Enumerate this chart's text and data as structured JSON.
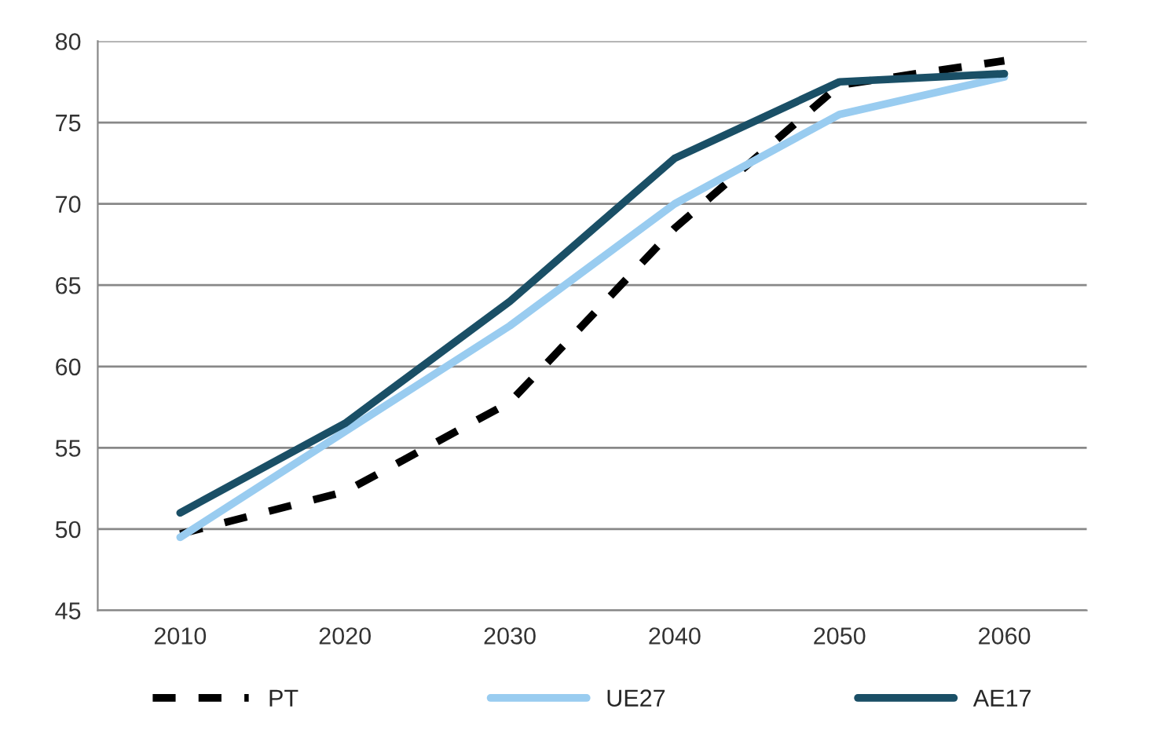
{
  "chart_data": {
    "type": "line",
    "categories": [
      "2010",
      "2020",
      "2030",
      "2040",
      "2050",
      "2060"
    ],
    "series": [
      {
        "name": "PT",
        "color": "#000000",
        "line_style": "dashed",
        "values": [
          49.7,
          52.3,
          57.8,
          68.5,
          77.3,
          78.8
        ]
      },
      {
        "name": "UE27",
        "color": "#99ccf0",
        "line_style": "solid",
        "values": [
          49.5,
          56.0,
          62.5,
          70.0,
          75.5,
          77.8
        ]
      },
      {
        "name": "AE17",
        "color": "#1a4f66",
        "line_style": "solid",
        "values": [
          51.0,
          56.5,
          64.0,
          72.8,
          77.5,
          78.0
        ]
      }
    ],
    "ylim": [
      45,
      80
    ],
    "yticks": [
      45,
      50,
      55,
      60,
      65,
      70,
      75,
      80
    ],
    "grid": "y",
    "legend": "bottom",
    "marker": "none"
  }
}
